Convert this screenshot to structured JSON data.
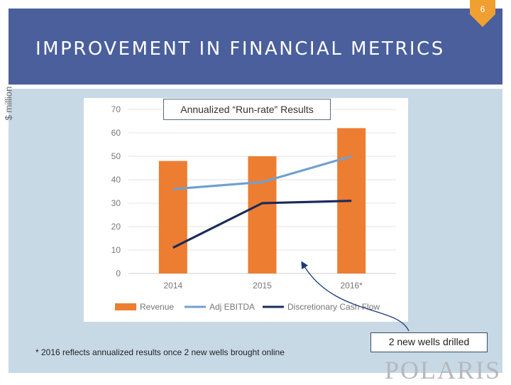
{
  "slide": {
    "page_number": "6",
    "title": "IMPROVEMENT IN FINANCIAL METRICS",
    "footnote": "* 2016 reflects annualized results once 2 new wells brought online",
    "callout": "2 new wells drilled",
    "logo": "POLARIS"
  },
  "colors": {
    "header": "#4a5f9c",
    "badge": "#f0a030",
    "content_bg": "#c8d9e6",
    "revenue": "#ed7d31",
    "adj_ebitda": "#6fa0d0",
    "cash_flow": "#1a2a5a"
  },
  "chart_data": {
    "type": "bar",
    "title": "Annualized “Run-rate” Results",
    "ylabel": "$ million",
    "xlabel": "",
    "ylim": [
      0,
      70
    ],
    "yticks": [
      "0",
      "10",
      "20",
      "30",
      "40",
      "50",
      "60",
      "70"
    ],
    "categories": [
      "2014",
      "2015",
      "2016*"
    ],
    "grid": true,
    "legend_position": "bottom",
    "series": [
      {
        "name": "Revenue",
        "kind": "bar",
        "color": "#ed7d31",
        "values": [
          48,
          50,
          62
        ]
      },
      {
        "name": "Adj EBITDA",
        "kind": "line",
        "color": "#6fa0d0",
        "values": [
          36,
          39,
          50
        ]
      },
      {
        "name": "Discretionary Cash Flow",
        "kind": "line",
        "color": "#1a2a5a",
        "values": [
          11,
          30,
          31
        ]
      }
    ]
  }
}
